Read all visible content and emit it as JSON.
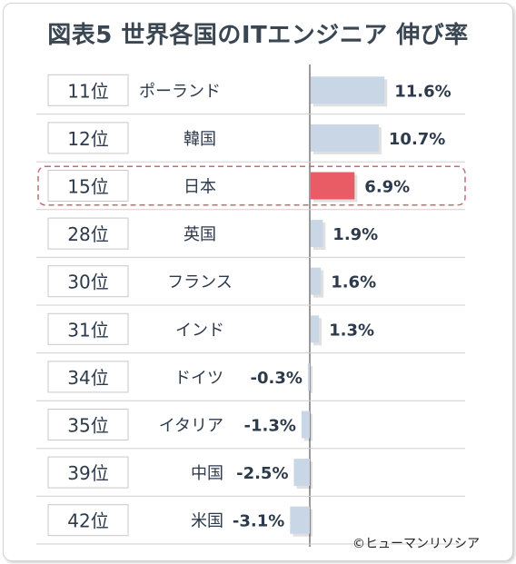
{
  "title": "図表5 世界各国のITエンジニア 伸び率",
  "credit": "©ヒューマンリソシア",
  "colors": {
    "bar": "#c9d6e5",
    "highlight_bar": "#e95c66",
    "highlight_border": "#c96b72",
    "text": "#2c3a4b",
    "axis": "#333333"
  },
  "chart_data": {
    "type": "bar",
    "orientation": "horizontal",
    "title": "図表5 世界各国のITエンジニア 伸び率",
    "xlabel": "",
    "ylabel": "",
    "xlim": [
      -3.5,
      12
    ],
    "highlight": "日本",
    "grid": false,
    "categories": [
      "ポーランド",
      "韓国",
      "日本",
      "英国",
      "フランス",
      "インド",
      "ドイツ",
      "イタリア",
      "中国",
      "米国"
    ],
    "ranks": [
      "11位",
      "12位",
      "15位",
      "28位",
      "30位",
      "31位",
      "34位",
      "35位",
      "39位",
      "42位"
    ],
    "values": [
      11.6,
      10.7,
      6.9,
      1.9,
      1.6,
      1.3,
      -0.3,
      -1.3,
      -2.5,
      -3.1
    ],
    "value_labels": [
      "11.6%",
      "10.7%",
      "6.9%",
      "1.9%",
      "1.6%",
      "1.3%",
      "-0.3%",
      "-1.3%",
      "-2.5%",
      "-3.1%"
    ]
  }
}
